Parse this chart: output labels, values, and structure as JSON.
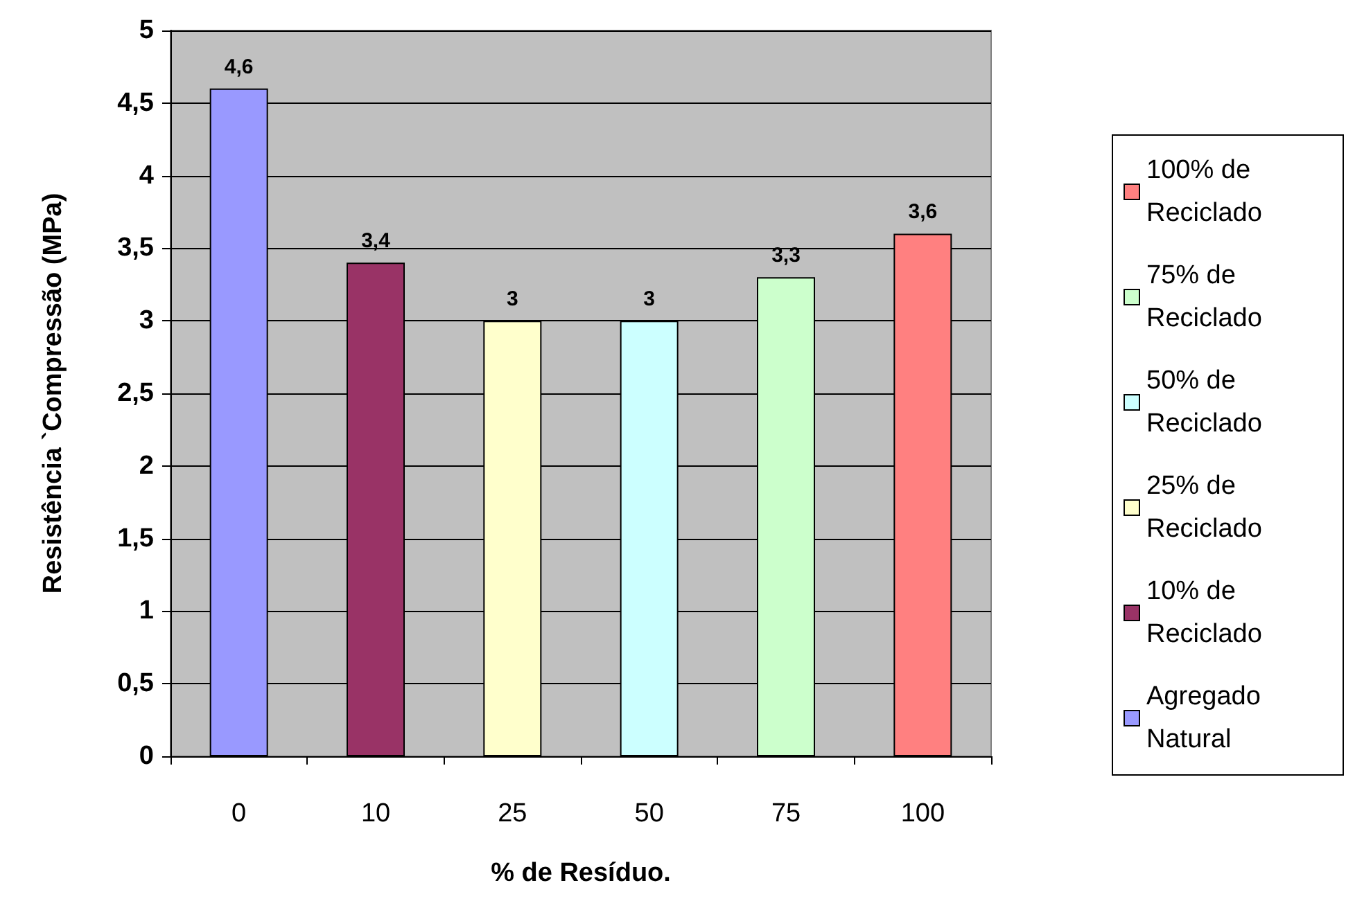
{
  "chart_data": {
    "type": "bar",
    "xlabel": "% de Resíduo.",
    "ylabel": "Resistência `Compressão (MPa)",
    "categories": [
      "0",
      "10",
      "25",
      "50",
      "75",
      "100"
    ],
    "series": [
      {
        "name": "Agregado Natural",
        "color": "#9999ff",
        "values": [
          4.6,
          null,
          null,
          null,
          null,
          null
        ],
        "value_labels": [
          "4,6",
          null,
          null,
          null,
          null,
          null
        ]
      },
      {
        "name": "10% de Reciclado",
        "color": "#993366",
        "values": [
          null,
          3.4,
          null,
          null,
          null,
          null
        ],
        "value_labels": [
          null,
          "3,4",
          null,
          null,
          null,
          null
        ]
      },
      {
        "name": "25% de Reciclado",
        "color": "#ffffcc",
        "values": [
          null,
          null,
          3,
          null,
          null,
          null
        ],
        "value_labels": [
          null,
          null,
          "3",
          null,
          null,
          null
        ]
      },
      {
        "name": "50% de Reciclado",
        "color": "#ccffff",
        "values": [
          null,
          null,
          null,
          3,
          null,
          null
        ],
        "value_labels": [
          null,
          null,
          null,
          "3",
          null,
          null
        ]
      },
      {
        "name": "75% de Reciclado",
        "color": "#ccffcc",
        "values": [
          null,
          null,
          null,
          null,
          3.3,
          null
        ],
        "value_labels": [
          null,
          null,
          null,
          null,
          "3,3",
          null
        ]
      },
      {
        "name": "100% de Reciclado",
        "color": "#ff8080",
        "values": [
          null,
          null,
          null,
          null,
          null,
          3.6
        ],
        "value_labels": [
          null,
          null,
          null,
          null,
          null,
          "3,6"
        ]
      }
    ],
    "ylim": [
      0,
      5
    ],
    "yticks": [
      0,
      {
        "value": 0.5,
        "label": "0,5"
      },
      1,
      {
        "value": 1.5,
        "label": "1,5"
      },
      2,
      {
        "value": 2.5,
        "label": "2,5"
      },
      3,
      {
        "value": 3.5,
        "label": "3,5"
      },
      4,
      {
        "value": 4.5,
        "label": "4,5"
      },
      5
    ],
    "grid": "y",
    "legend": "right"
  }
}
